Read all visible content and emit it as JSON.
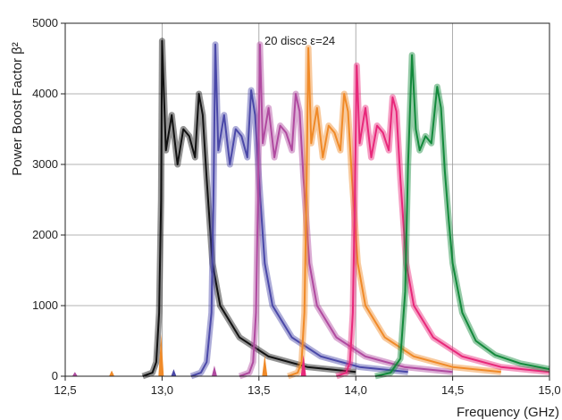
{
  "chart_data": {
    "type": "line",
    "xlabel": "Frequency (GHz)",
    "ylabel": "Power Boost Factor β²",
    "annotation": "20 discs ε=24",
    "xlim": [
      12.5,
      15.0
    ],
    "ylim": [
      0,
      5000
    ],
    "x_ticks": [
      "12,5",
      "13,0",
      "13,5",
      "14,0",
      "14,5",
      "15,0"
    ],
    "y_ticks": [
      "0",
      "1000",
      "2000",
      "3000",
      "4000",
      "5000"
    ],
    "grid": true,
    "series": [
      {
        "color": "#111111",
        "x": [
          12.9,
          12.95,
          12.97,
          12.985,
          12.995,
          13.0,
          13.02,
          13.05,
          13.08,
          13.11,
          13.14,
          13.17,
          13.19,
          13.21,
          13.23,
          13.26,
          13.3,
          13.4,
          13.55,
          13.75,
          14.0
        ],
        "y": [
          0,
          50,
          200,
          900,
          2500,
          4750,
          3200,
          3700,
          3000,
          3500,
          3400,
          3100,
          4000,
          3700,
          2800,
          1600,
          1000,
          550,
          280,
          130,
          60
        ]
      },
      {
        "color": "#4a48a8",
        "x": [
          13.15,
          13.2,
          13.23,
          13.255,
          13.265,
          13.275,
          13.29,
          13.32,
          13.35,
          13.38,
          13.41,
          13.44,
          13.46,
          13.48,
          13.5,
          13.53,
          13.57,
          13.67,
          13.82,
          14.02,
          14.27
        ],
        "y": [
          0,
          50,
          200,
          900,
          2500,
          4700,
          3200,
          3700,
          3000,
          3500,
          3400,
          3100,
          4050,
          3700,
          2800,
          1600,
          1000,
          550,
          280,
          130,
          60
        ]
      },
      {
        "color": "#b04aa0",
        "x": [
          13.4,
          13.45,
          13.47,
          13.485,
          13.495,
          13.505,
          13.52,
          13.55,
          13.58,
          13.61,
          13.64,
          13.67,
          13.69,
          13.71,
          13.73,
          13.76,
          13.8,
          13.9,
          14.05,
          14.25,
          14.5
        ],
        "y": [
          0,
          50,
          200,
          900,
          2500,
          4700,
          3300,
          3800,
          3100,
          3550,
          3450,
          3200,
          4000,
          3750,
          2800,
          1600,
          1000,
          550,
          280,
          130,
          60
        ]
      },
      {
        "color": "#f08a28",
        "x": [
          13.65,
          13.7,
          13.72,
          13.735,
          13.745,
          13.755,
          13.77,
          13.8,
          13.83,
          13.86,
          13.89,
          13.92,
          13.94,
          13.96,
          13.98,
          14.01,
          14.05,
          14.15,
          14.3,
          14.5,
          14.75
        ],
        "y": [
          0,
          50,
          200,
          900,
          2500,
          4650,
          3300,
          3800,
          3100,
          3550,
          3450,
          3200,
          4000,
          3750,
          2800,
          1600,
          1000,
          550,
          280,
          130,
          60
        ]
      },
      {
        "color": "#e8287a",
        "x": [
          13.9,
          13.95,
          13.97,
          13.985,
          13.995,
          14.005,
          14.02,
          14.05,
          14.08,
          14.11,
          14.14,
          14.17,
          14.19,
          14.21,
          14.23,
          14.26,
          14.3,
          14.4,
          14.55,
          14.75,
          15.0
        ],
        "y": [
          0,
          50,
          200,
          900,
          2500,
          4400,
          3300,
          3800,
          3100,
          3550,
          3450,
          3200,
          3950,
          3750,
          2800,
          1600,
          1000,
          550,
          280,
          130,
          60
        ]
      },
      {
        "color": "#138a3c",
        "x": [
          14.1,
          14.18,
          14.23,
          14.255,
          14.27,
          14.29,
          14.31,
          14.33,
          14.36,
          14.39,
          14.42,
          14.44,
          14.46,
          14.48,
          14.5,
          14.55,
          14.62,
          14.72,
          14.85,
          15.0
        ],
        "y": [
          0,
          50,
          250,
          1200,
          3000,
          4550,
          3500,
          3200,
          3400,
          3300,
          4100,
          3800,
          2900,
          2200,
          1600,
          900,
          500,
          300,
          180,
          100
        ]
      }
    ],
    "near_zero_spikes": [
      {
        "color": "#f08a28",
        "x": 12.995,
        "y": 600
      },
      {
        "color": "#f08a28",
        "x": 13.53,
        "y": 300
      },
      {
        "color": "#b04aa0",
        "x": 13.27,
        "y": 150
      },
      {
        "color": "#e8287a",
        "x": 13.73,
        "y": 300
      },
      {
        "color": "#4a48a8",
        "x": 13.06,
        "y": 100
      },
      {
        "color": "#b04aa0",
        "x": 12.55,
        "y": 60
      },
      {
        "color": "#f08a28",
        "x": 12.74,
        "y": 80
      }
    ]
  }
}
